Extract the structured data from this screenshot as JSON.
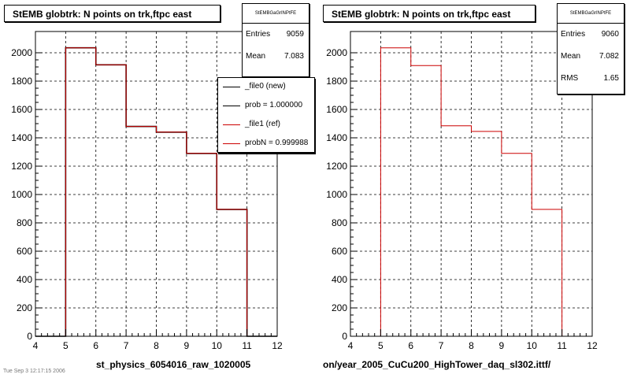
{
  "panels": [
    {
      "title": "StEMB globtrk: N points on trk,ftpc east",
      "stats": {
        "name": "StEMBGaGrlNPtFE",
        "rows": [
          {
            "label": "Entries",
            "value": "9059"
          },
          {
            "label": "Mean",
            "value": "7.083"
          }
        ]
      },
      "legend": [
        {
          "label": "_file0 (new)",
          "color": "#000000"
        },
        {
          "label": "prob = 1.000000",
          "color": "#000000"
        },
        {
          "label": "_file1 (ref)",
          "color": "#cc0000"
        },
        {
          "label": "probN = 0.999988",
          "color": "#cc0000"
        }
      ],
      "file_label": "st_physics_6054016_raw_1020005",
      "faint_text": "Tue Sep  3 12:17:15 2006"
    },
    {
      "title": "StEMB globtrk: N points on trk,ftpc east",
      "stats": {
        "name": "StEMBGaGrlNPtFE",
        "rows": [
          {
            "label": "Entries",
            "value": "9060"
          },
          {
            "label": "Mean",
            "value": "7.082"
          },
          {
            "label": "RMS",
            "value": "1.65"
          }
        ]
      },
      "legend": [],
      "file_label": "on/year_2005_CuCu200_HighTower_daq_sl302.ittf/",
      "faint_text": ""
    }
  ],
  "chart_data": [
    {
      "type": "histogram",
      "title": "StEMB globtrk: N points on trk,ftpc east",
      "xlabel": "st_physics_6054016_raw_1020005",
      "ylabel": "",
      "xlim": [
        4,
        12
      ],
      "ylim": [
        0,
        2150
      ],
      "x_ticks": [
        4,
        5,
        6,
        7,
        8,
        9,
        10,
        11,
        12
      ],
      "y_ticks": [
        0,
        200,
        400,
        600,
        800,
        1000,
        1200,
        1400,
        1600,
        1800,
        2000
      ],
      "grid": true,
      "legend_position": "top-right",
      "series": [
        {
          "name": "_file0 (new)",
          "color": "#000000",
          "bin_edges": [
            4,
            5,
            6,
            7,
            8,
            9,
            10,
            11,
            12
          ],
          "values": [
            0,
            2035,
            1915,
            1480,
            1440,
            1290,
            895,
            0
          ]
        },
        {
          "name": "_file1 (ref)",
          "color": "#cc0000",
          "bin_edges": [
            4,
            5,
            6,
            7,
            8,
            9,
            10,
            11,
            12
          ],
          "values": [
            0,
            2035,
            1915,
            1480,
            1440,
            1290,
            895,
            0
          ]
        }
      ]
    },
    {
      "type": "histogram",
      "title": "StEMB globtrk: N points on trk,ftpc east",
      "xlabel": "on/year_2005_CuCu200_HighTower_daq_sl302.ittf/",
      "ylabel": "",
      "xlim": [
        4,
        12
      ],
      "ylim": [
        0,
        2150
      ],
      "x_ticks": [
        4,
        5,
        6,
        7,
        8,
        9,
        10,
        11,
        12
      ],
      "y_ticks": [
        0,
        200,
        400,
        600,
        800,
        1000,
        1200,
        1400,
        1600,
        1800,
        2000
      ],
      "grid": true,
      "series": [
        {
          "name": "",
          "color": "#cc0000",
          "bin_edges": [
            4,
            5,
            6,
            7,
            8,
            9,
            10,
            11,
            12
          ],
          "values": [
            0,
            2035,
            1910,
            1485,
            1445,
            1290,
            895,
            0
          ]
        }
      ]
    }
  ]
}
